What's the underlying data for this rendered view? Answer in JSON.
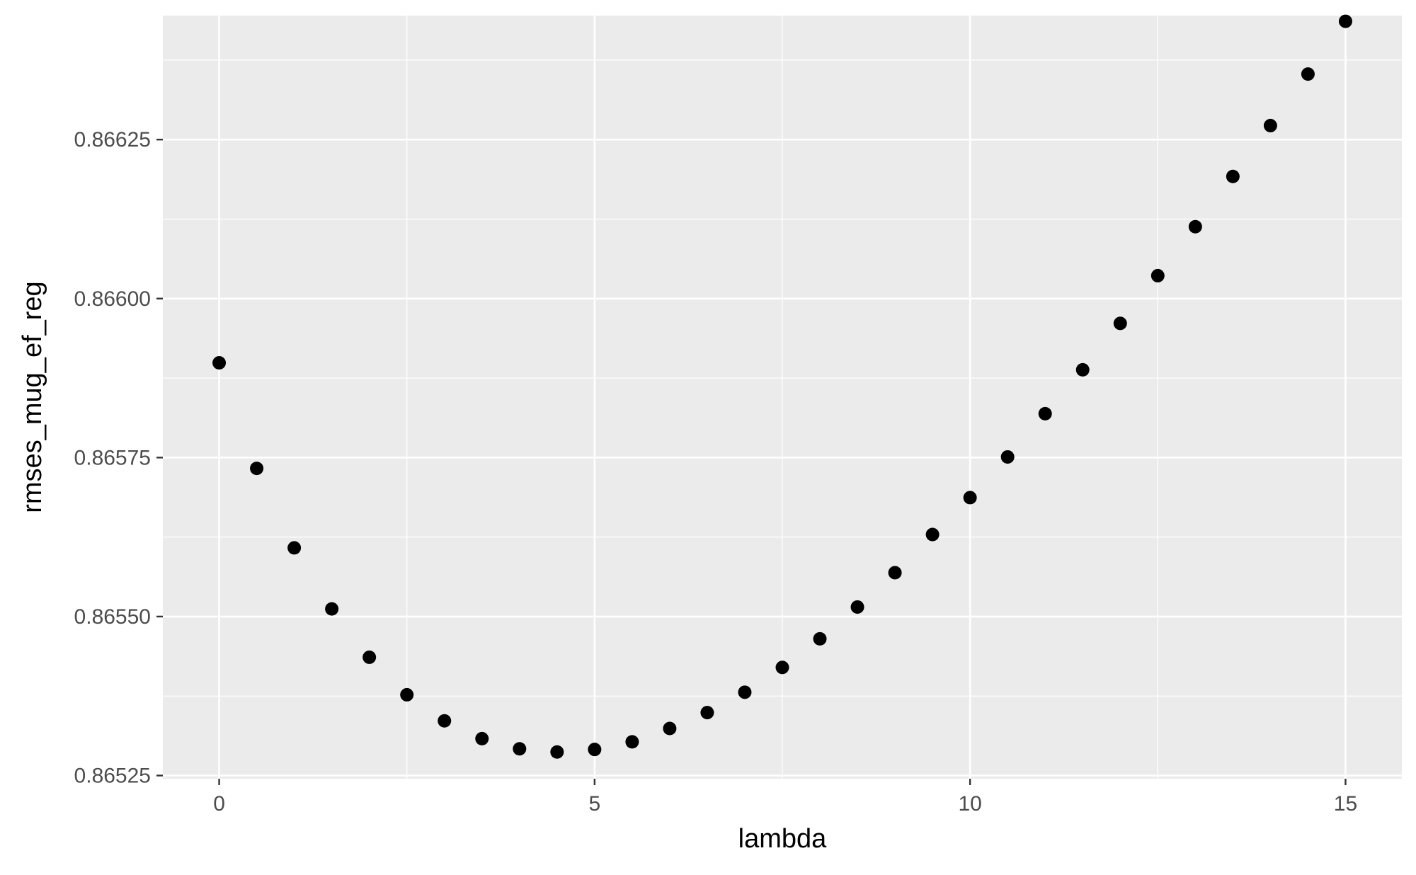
{
  "chart_data": {
    "type": "scatter",
    "title": "",
    "xlabel": "lambda",
    "ylabel": "rmses_mug_ef_reg",
    "xlim": [
      -0.75,
      15.75
    ],
    "ylim": [
      0.865245,
      0.866445
    ],
    "x_ticks": [
      0,
      5,
      10,
      15
    ],
    "x_tick_labels": [
      "0",
      "5",
      "10",
      "15"
    ],
    "y_ticks": [
      0.86525,
      0.8655,
      0.86575,
      0.866,
      0.86625
    ],
    "y_tick_labels": [
      "0.86525",
      "0.86550",
      "0.86575",
      "0.86600",
      "0.86625"
    ],
    "grid": true,
    "colors": {
      "panel_background": "#ebebeb",
      "grid_major": "#ffffff",
      "grid_minor": "#ffffff",
      "point": "#000000",
      "tick": "#333333"
    },
    "series": [
      {
        "x": [
          0,
          0.5,
          1,
          1.5,
          2,
          2.5,
          3,
          3.5,
          4,
          4.5,
          5,
          5.5,
          6,
          6.5,
          7,
          7.5,
          8,
          8.5,
          9,
          9.5,
          10,
          10.5,
          11,
          11.5,
          12,
          12.5,
          13,
          13.5,
          14,
          14.5,
          15
        ],
        "y": [
          0.865899,
          0.865733,
          0.865608,
          0.865512,
          0.865436,
          0.865377,
          0.865336,
          0.865308,
          0.865292,
          0.865287,
          0.865291,
          0.865303,
          0.865324,
          0.865349,
          0.865381,
          0.86542,
          0.865465,
          0.865515,
          0.865569,
          0.865629,
          0.865687,
          0.865751,
          0.865819,
          0.865888,
          0.865961,
          0.866036,
          0.866113,
          0.866192,
          0.866272,
          0.866353,
          0.866436
        ]
      }
    ]
  }
}
